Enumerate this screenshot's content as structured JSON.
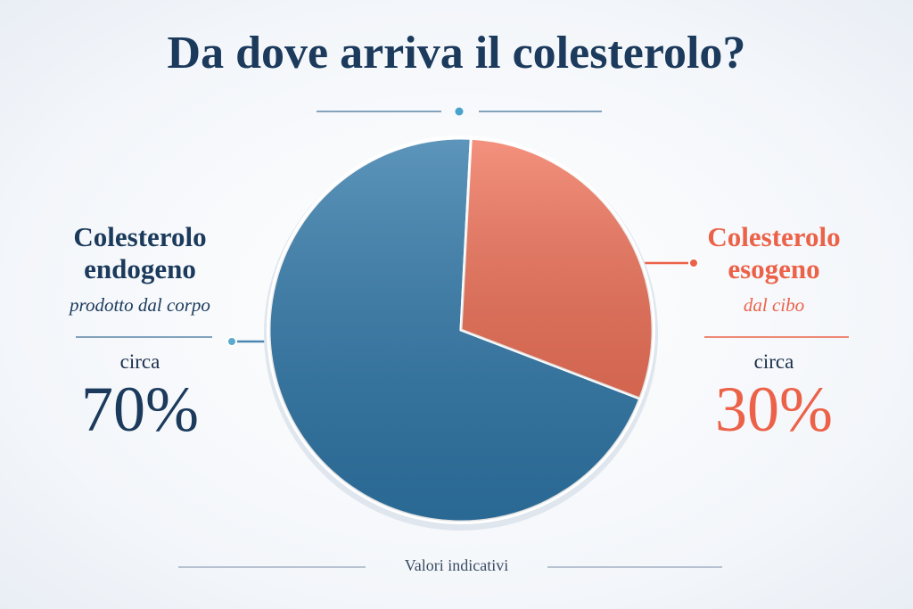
{
  "chart_data": {
    "type": "pie",
    "title": "Da dove arriva il colesterolo?",
    "categories": [
      "Colesterolo endogeno",
      "Colesterolo esogeno"
    ],
    "descriptions": [
      "prodotto dal corpo",
      "dal cibo"
    ],
    "prefixes": [
      "circa",
      "circa"
    ],
    "values": [
      70,
      30
    ],
    "value_labels": [
      "70%",
      "30%"
    ],
    "colors": [
      "#2f77a8",
      "#f0735a"
    ],
    "note": "Valori indicativi"
  }
}
